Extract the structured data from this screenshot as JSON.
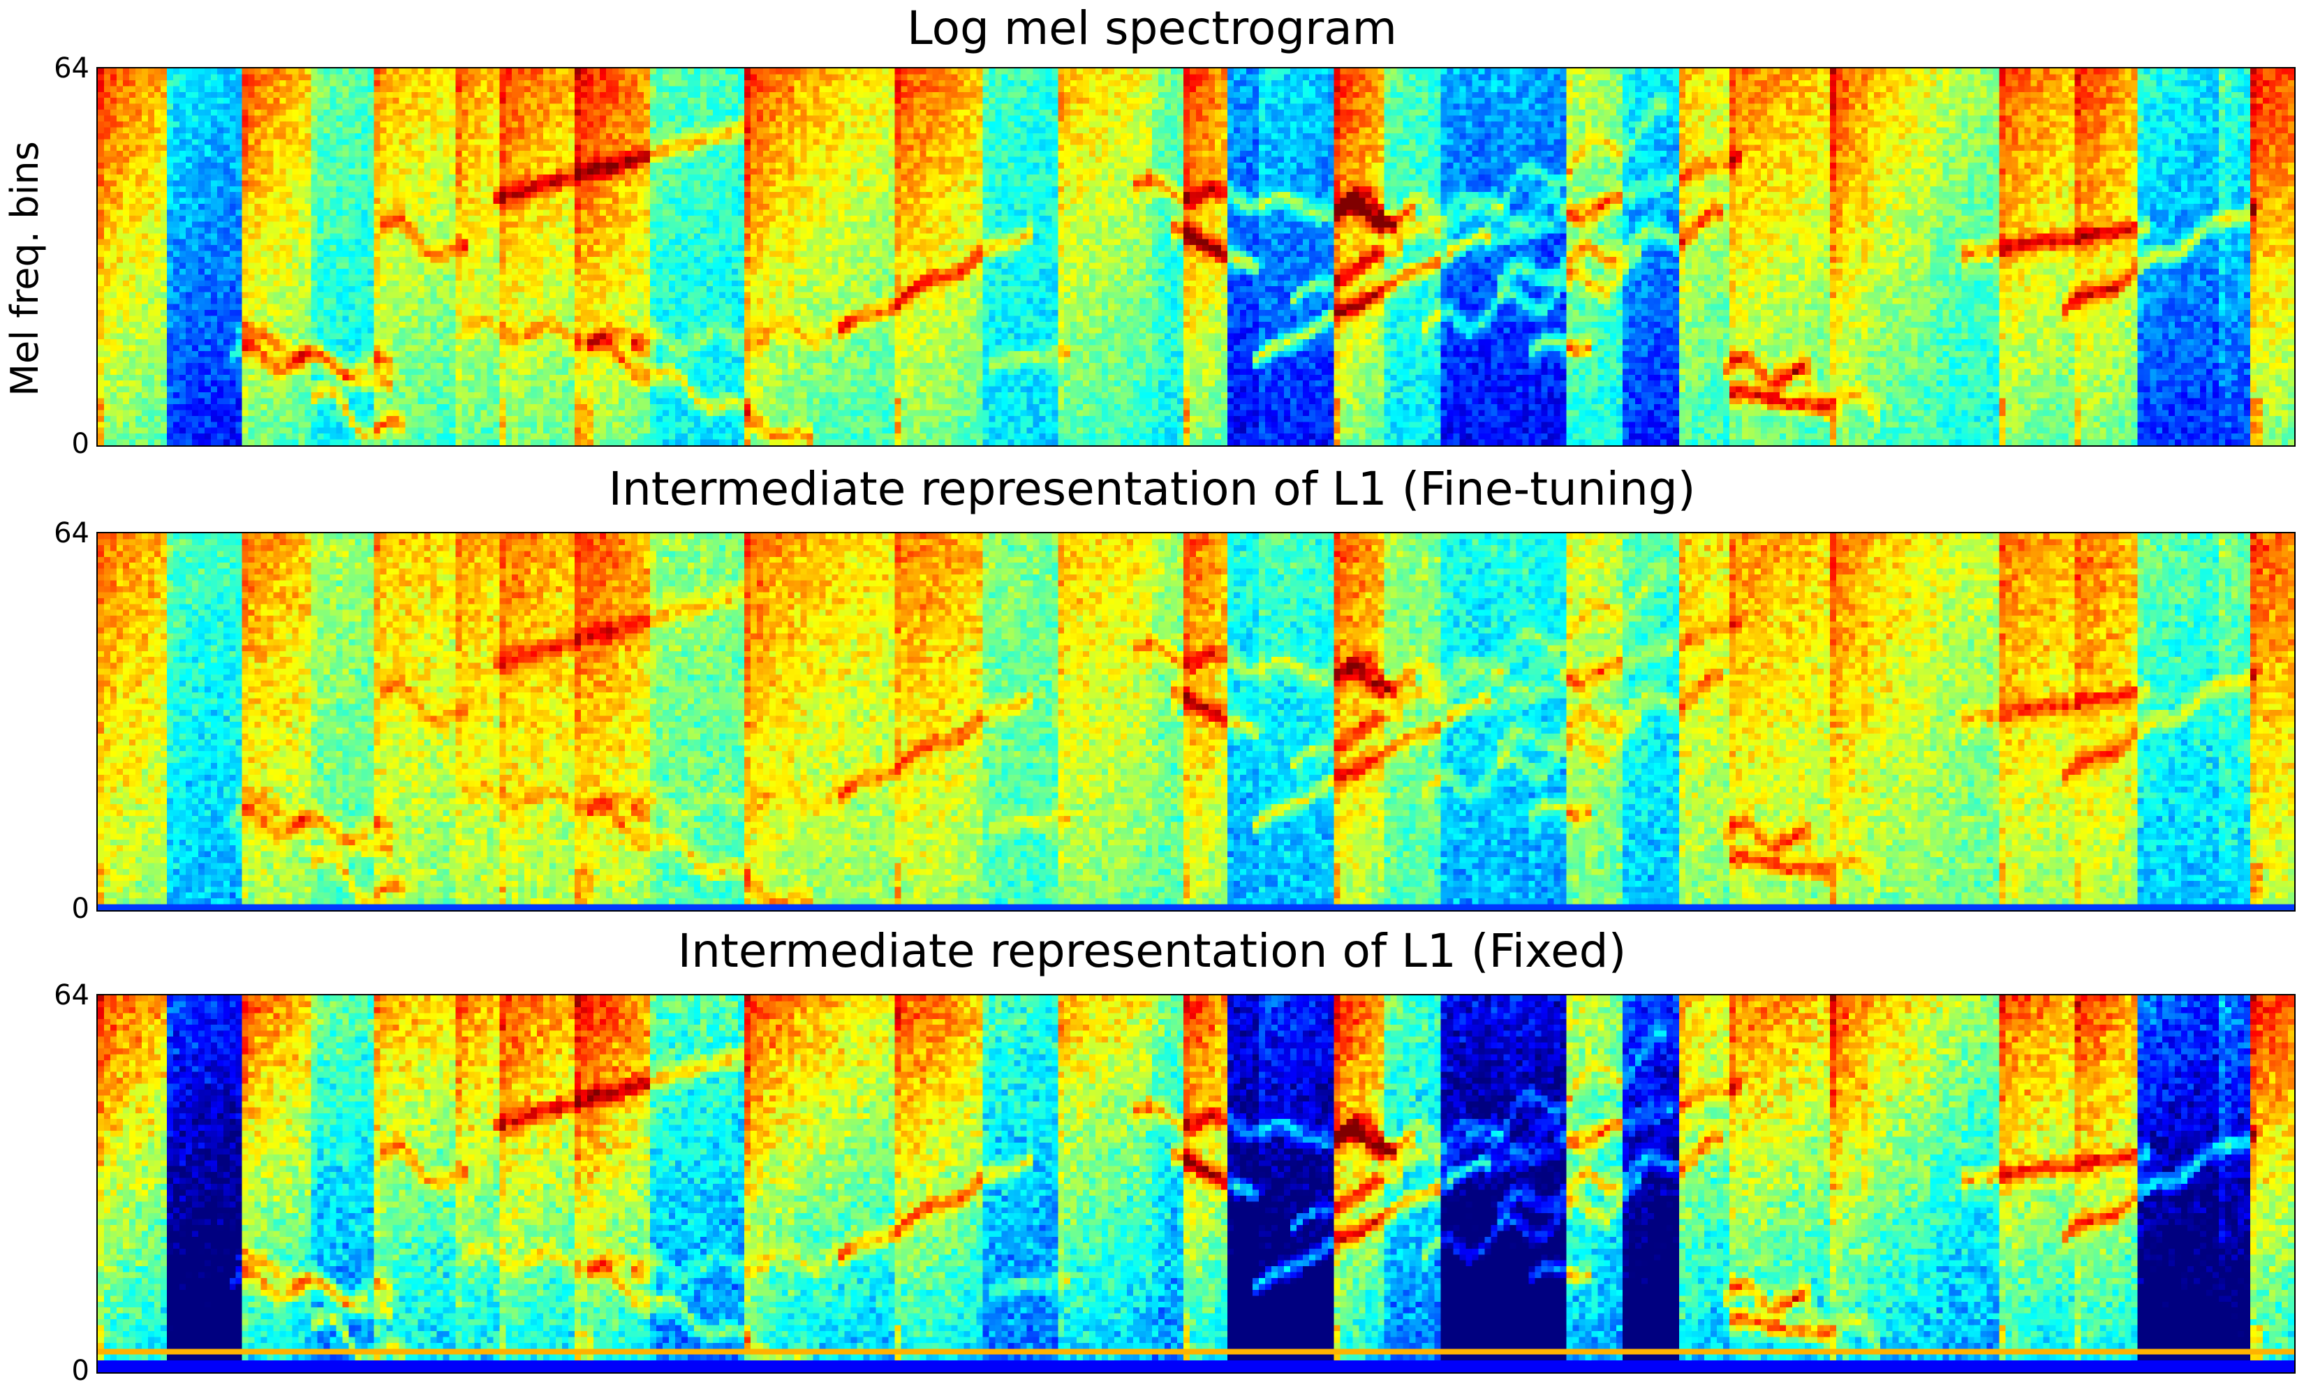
{
  "figure": {
    "colormap": "jet",
    "ylabel": "Mel freq. bins"
  },
  "chart_data": [
    {
      "type": "heatmap",
      "title": "Log mel spectrogram",
      "xlabel": "",
      "ylabel": "Mel freq. bins",
      "y_ticks": [
        "0",
        "64"
      ],
      "ylim": [
        0,
        64
      ],
      "n_freq_bins": 64,
      "n_frames": 350,
      "colormap": "jet",
      "seed": 11,
      "style": "spectrogram"
    },
    {
      "type": "heatmap",
      "title": "Intermediate representation of L1 (Fine-tuning)",
      "xlabel": "",
      "ylabel": "",
      "y_ticks": [
        "0",
        "64"
      ],
      "ylim": [
        0,
        64
      ],
      "n_freq_bins": 64,
      "n_frames": 350,
      "colormap": "jet",
      "seed": 11,
      "style": "finetuned"
    },
    {
      "type": "heatmap",
      "title": "Intermediate representation of L1 (Fixed)",
      "xlabel": "",
      "ylabel": "",
      "y_ticks": [
        "0",
        "64"
      ],
      "ylim": [
        0,
        64
      ],
      "n_freq_bins": 64,
      "n_frames": 350,
      "colormap": "jet",
      "seed": 11,
      "style": "fixed"
    }
  ]
}
